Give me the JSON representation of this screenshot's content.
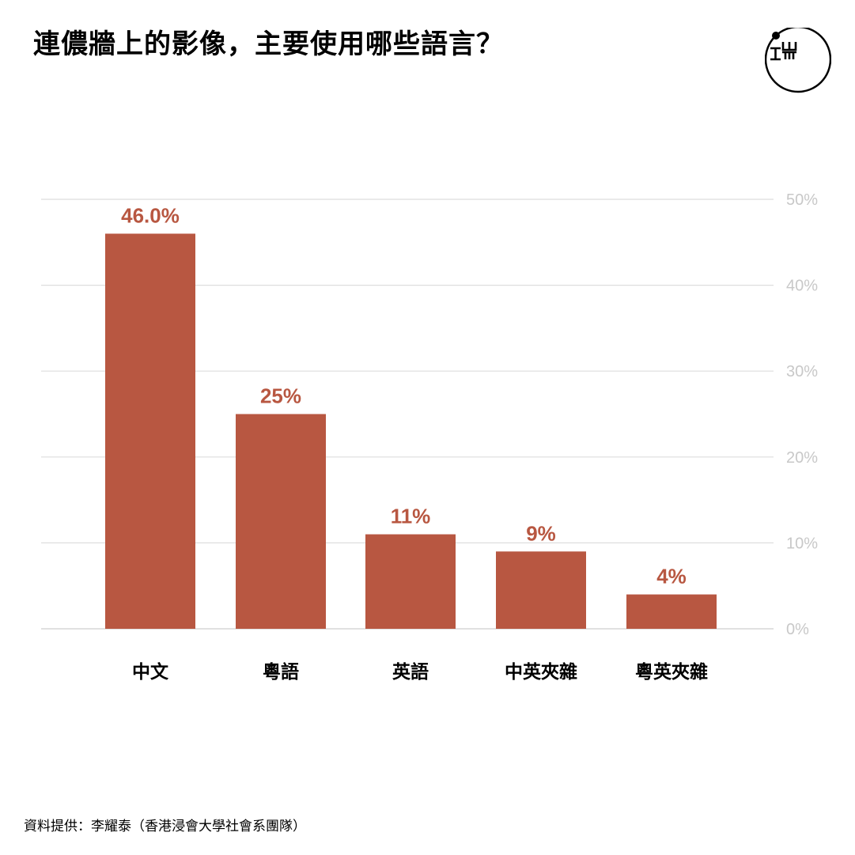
{
  "title": "連儂牆上的影像，主要使用哪些語言？",
  "logo": {
    "icon": "initium-logo",
    "text": "端"
  },
  "source": "資料提供：李耀泰（香港浸會大學社會系團隊）",
  "colors": {
    "bar": "#b85741",
    "grid": "#dedede",
    "tick": "#c8c8c8",
    "label": "#b85741",
    "category": "#000000"
  },
  "chart_data": {
    "type": "bar",
    "categories": [
      "中文",
      "粵語",
      "英語",
      "中英夾雜",
      "粵英夾雜"
    ],
    "values": [
      46.0,
      25,
      11,
      9,
      4
    ],
    "data_labels": [
      "46.0%",
      "25%",
      "11%",
      "9%",
      "4%"
    ],
    "title": "",
    "xlabel": "",
    "ylabel": "",
    "ylim": [
      0,
      50
    ],
    "yticks": [
      0,
      10,
      20,
      30,
      40,
      50
    ],
    "ytick_labels": [
      "0%",
      "10%",
      "20%",
      "30%",
      "40%",
      "50%"
    ],
    "y_axis_position": "right",
    "grid": true
  }
}
